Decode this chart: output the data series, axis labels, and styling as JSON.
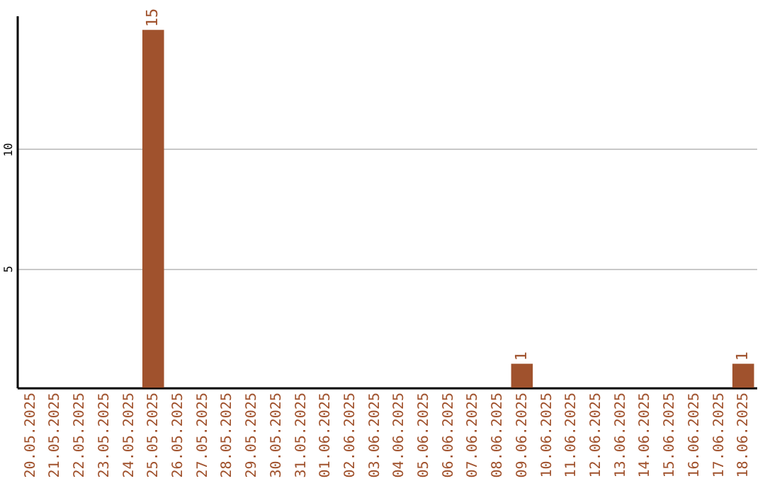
{
  "chart_data": {
    "type": "bar",
    "categories": [
      "20.05.2025",
      "21.05.2025",
      "22.05.2025",
      "23.05.2025",
      "24.05.2025",
      "25.05.2025",
      "26.05.2025",
      "27.05.2025",
      "28.05.2025",
      "29.05.2025",
      "30.05.2025",
      "31.05.2025",
      "01.06.2025",
      "02.06.2025",
      "03.06.2025",
      "04.06.2025",
      "05.06.2025",
      "06.06.2025",
      "07.06.2025",
      "08.06.2025",
      "09.06.2025",
      "10.06.2025",
      "11.06.2025",
      "12.06.2025",
      "13.06.2025",
      "14.06.2025",
      "15.06.2025",
      "16.06.2025",
      "17.06.2025",
      "18.06.2025"
    ],
    "values": [
      0,
      0,
      0,
      0,
      0,
      15,
      0,
      0,
      0,
      0,
      0,
      0,
      0,
      0,
      0,
      0,
      0,
      0,
      0,
      0,
      1,
      0,
      0,
      0,
      0,
      0,
      0,
      0,
      0,
      1
    ],
    "value_labels": [
      null,
      null,
      null,
      null,
      null,
      "15",
      null,
      null,
      null,
      null,
      null,
      null,
      null,
      null,
      null,
      null,
      null,
      null,
      null,
      null,
      "1",
      null,
      null,
      null,
      null,
      null,
      null,
      null,
      null,
      "1"
    ],
    "color": "#a0522d",
    "ylim": [
      0,
      15.6
    ],
    "yticks": [
      5,
      10
    ],
    "grid": "y"
  }
}
